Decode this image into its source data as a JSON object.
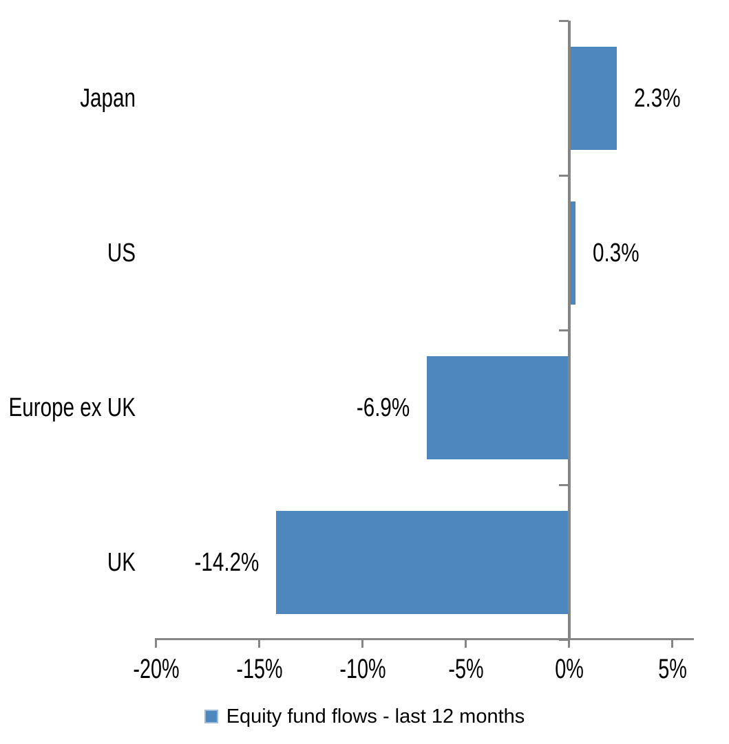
{
  "chart_data": {
    "type": "bar",
    "orientation": "horizontal",
    "title": "",
    "categories": [
      "Japan",
      "US",
      "Europe ex UK",
      "UK"
    ],
    "values": [
      2.3,
      0.3,
      -6.9,
      -14.2
    ],
    "data_labels": [
      "2.3%",
      "0.3%",
      "-6.9%",
      "-14.2%"
    ],
    "x_axis": {
      "tick_labels": [
        "-20%",
        "-15%",
        "-10%",
        "-5%",
        "0%",
        "5%"
      ],
      "tick_values": [
        -20,
        -15,
        -10,
        -5,
        0,
        5
      ],
      "range": [
        -20,
        6
      ]
    },
    "y_axis": {
      "category_boundaries": 5
    },
    "grid": false,
    "legend": {
      "label": "Equity fund flows - last 12 months",
      "position": "bottom"
    },
    "colors": {
      "bar": "#4E87BD",
      "axis": "#858585",
      "text": "#000000",
      "background": "#FFFFFF"
    }
  }
}
